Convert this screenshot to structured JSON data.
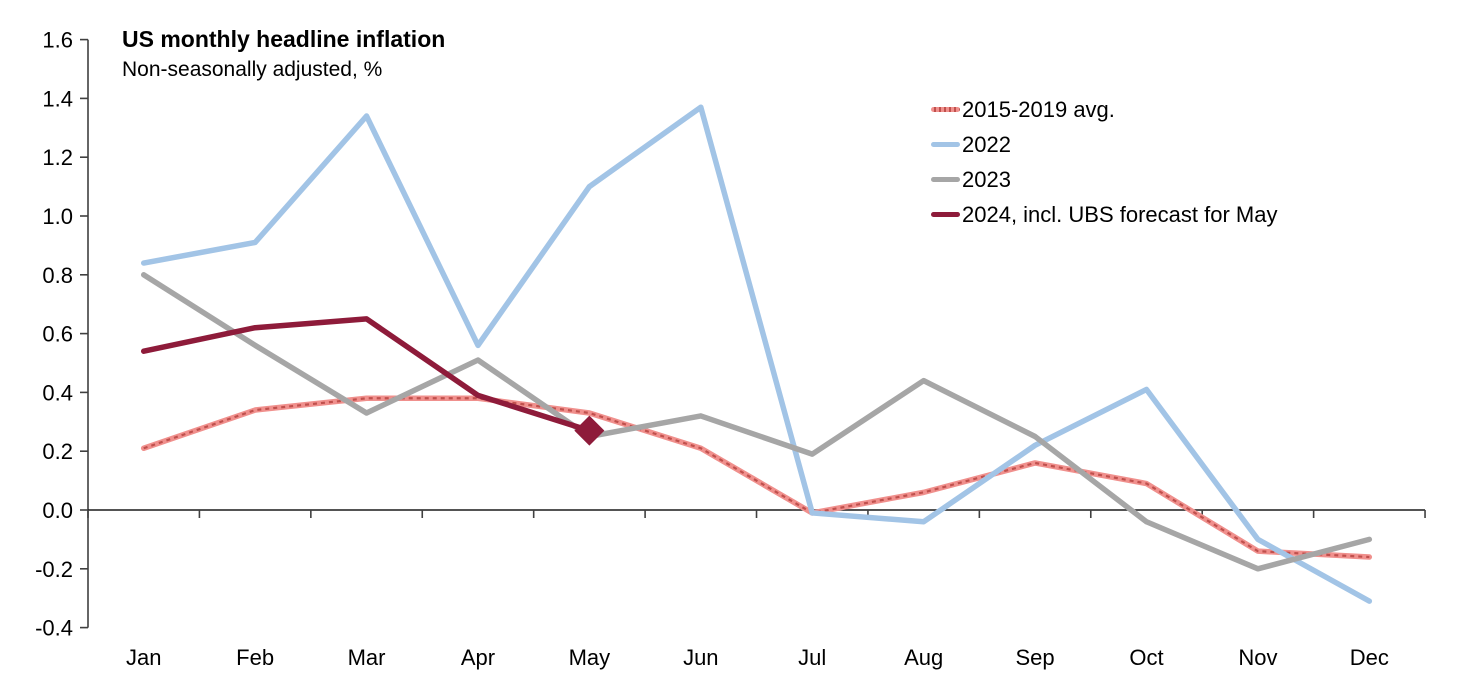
{
  "chart_data": {
    "type": "line",
    "title": "US monthly headline inflation",
    "subtitle": "Non-seasonally adjusted, %",
    "categories": [
      "Jan",
      "Feb",
      "Mar",
      "Apr",
      "May",
      "Jun",
      "Jul",
      "Aug",
      "Sep",
      "Oct",
      "Nov",
      "Dec"
    ],
    "y_tick_labels": [
      "1.6",
      "1.4",
      "1.2",
      "1.0",
      "0.8",
      "0.6",
      "0.4",
      "0.2",
      "0.0",
      "-0.2",
      "-0.4"
    ],
    "ylim": [
      -0.4,
      1.6
    ],
    "xlabel": "",
    "ylabel": "",
    "grid": false,
    "legend_position": "top-right",
    "series": [
      {
        "name": "2015-2019 avg.",
        "color": "#F0908D",
        "overlay_color": "#C0504D",
        "line_style": "dotted-overlay",
        "values": [
          0.21,
          0.34,
          0.38,
          0.38,
          0.33,
          0.21,
          -0.01,
          0.06,
          0.16,
          0.09,
          -0.14,
          -0.16
        ]
      },
      {
        "name": "2022",
        "color": "#A2C4E6",
        "line_style": "solid",
        "values": [
          0.84,
          0.91,
          1.34,
          0.56,
          1.1,
          1.37,
          -0.01,
          -0.04,
          0.22,
          0.41,
          -0.1,
          -0.31
        ]
      },
      {
        "name": "2023",
        "color": "#A6A6A6",
        "line_style": "solid",
        "values": [
          0.8,
          0.56,
          0.33,
          0.51,
          0.25,
          0.32,
          0.19,
          0.44,
          0.25,
          -0.04,
          -0.2,
          -0.1
        ]
      },
      {
        "name": "2024, incl. UBS forecast for May",
        "color": "#8E1B3A",
        "line_style": "solid",
        "end_marker": "diamond",
        "values": [
          0.54,
          0.62,
          0.65,
          0.39,
          0.27
        ]
      }
    ]
  }
}
